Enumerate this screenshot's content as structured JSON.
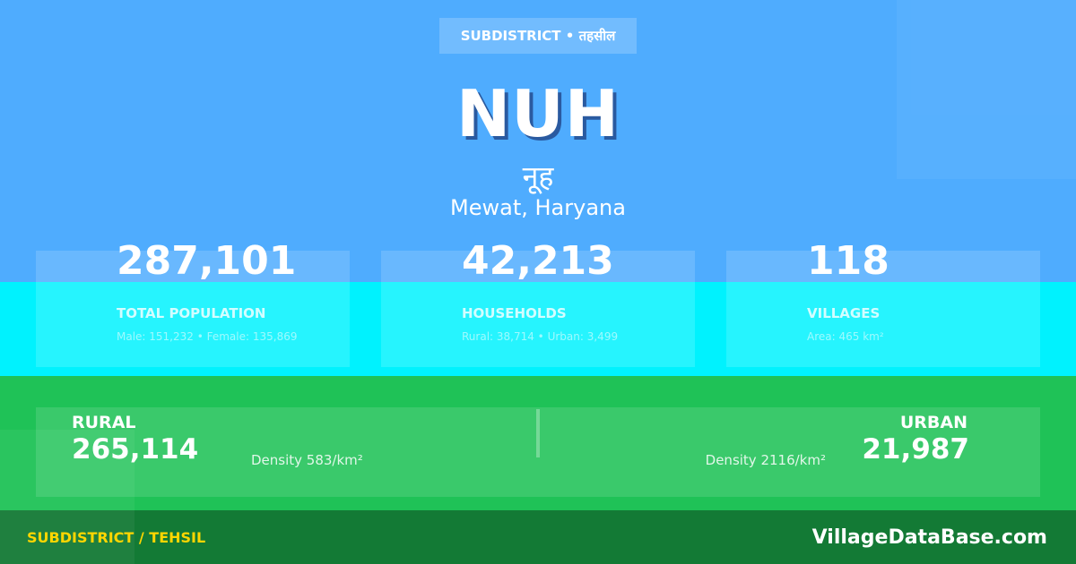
{
  "badge": "SUBDISTRICT • तहसील",
  "title": "NUH",
  "title_hindi": "नूह",
  "location": "Mewat, Haryana",
  "stats": [
    {
      "value": "287,101",
      "label": "TOTAL POPULATION",
      "detail": "Male: 151,232 • Female: 135,869"
    },
    {
      "value": "42,213",
      "label": "HOUSEHOLDS",
      "detail": "Rural: 38,714 • Urban: 3,499"
    },
    {
      "value": "118",
      "label": "VILLAGES",
      "detail": "Area: 465 km²"
    }
  ],
  "rural": {
    "label": "RURAL",
    "value": "265,114",
    "density": "Density 583/km²"
  },
  "urban": {
    "label": "URBAN",
    "value": "21,987",
    "density": "Density 2116/km²"
  },
  "footer": {
    "left": "SUBDISTRICT / TEHSIL",
    "right": "VillageDataBase.com"
  },
  "colors": {
    "top": "#4facfe",
    "middle": "#00f2fe",
    "bottom": "#1fc257",
    "footer": "#137a35",
    "footer_label": "#ffd600"
  }
}
